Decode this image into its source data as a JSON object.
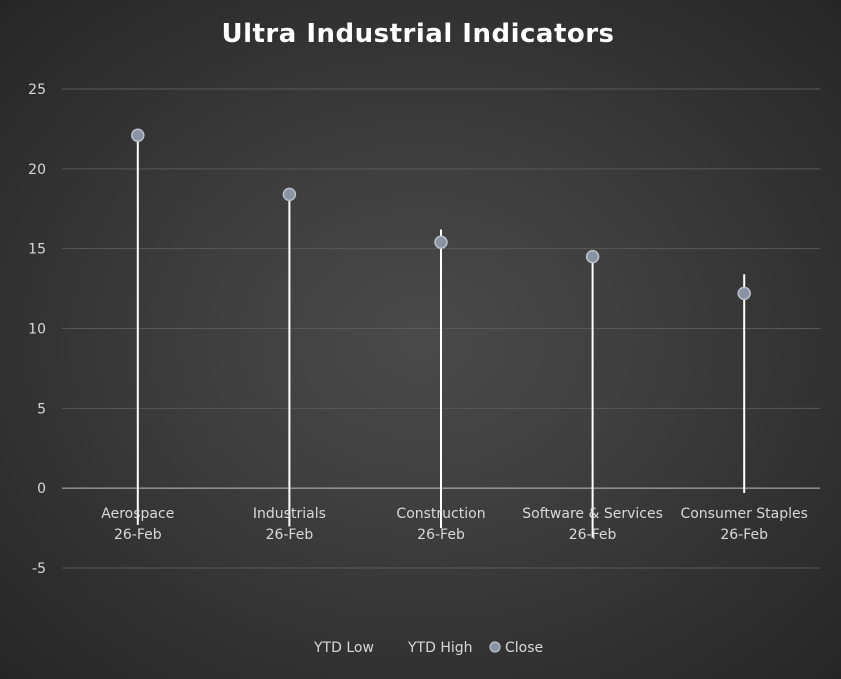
{
  "chart_data": {
    "type": "stock-hlc",
    "title": "Ultra Industrial Indicators",
    "categories": [
      [
        "Aerospace",
        "26-Feb"
      ],
      [
        "Industrials",
        "26-Feb"
      ],
      [
        "Construction",
        "26-Feb"
      ],
      [
        "Software & Services",
        "26-Feb"
      ],
      [
        "Consumer Staples",
        "26-Feb"
      ]
    ],
    "series": [
      {
        "name": "YTD Low",
        "values": [
          -2.3,
          -2.4,
          -2.5,
          -3.1,
          -0.3
        ]
      },
      {
        "name": "YTD High",
        "values": [
          22.3,
          18.6,
          16.2,
          14.8,
          13.4
        ]
      },
      {
        "name": "Close",
        "values": [
          22.1,
          18.4,
          15.4,
          14.5,
          12.2
        ]
      }
    ],
    "ylim": [
      -5,
      25
    ],
    "yticks": [
      25,
      20,
      15,
      10,
      5,
      0,
      -5
    ],
    "grid": true,
    "legend_position": "bottom",
    "colors": {
      "range_line": "#ffffff",
      "close_marker": "#8a93a3",
      "close_marker_stroke": "#b9c0cc",
      "gridline": "#595959",
      "text": "#d9d9d9"
    }
  }
}
